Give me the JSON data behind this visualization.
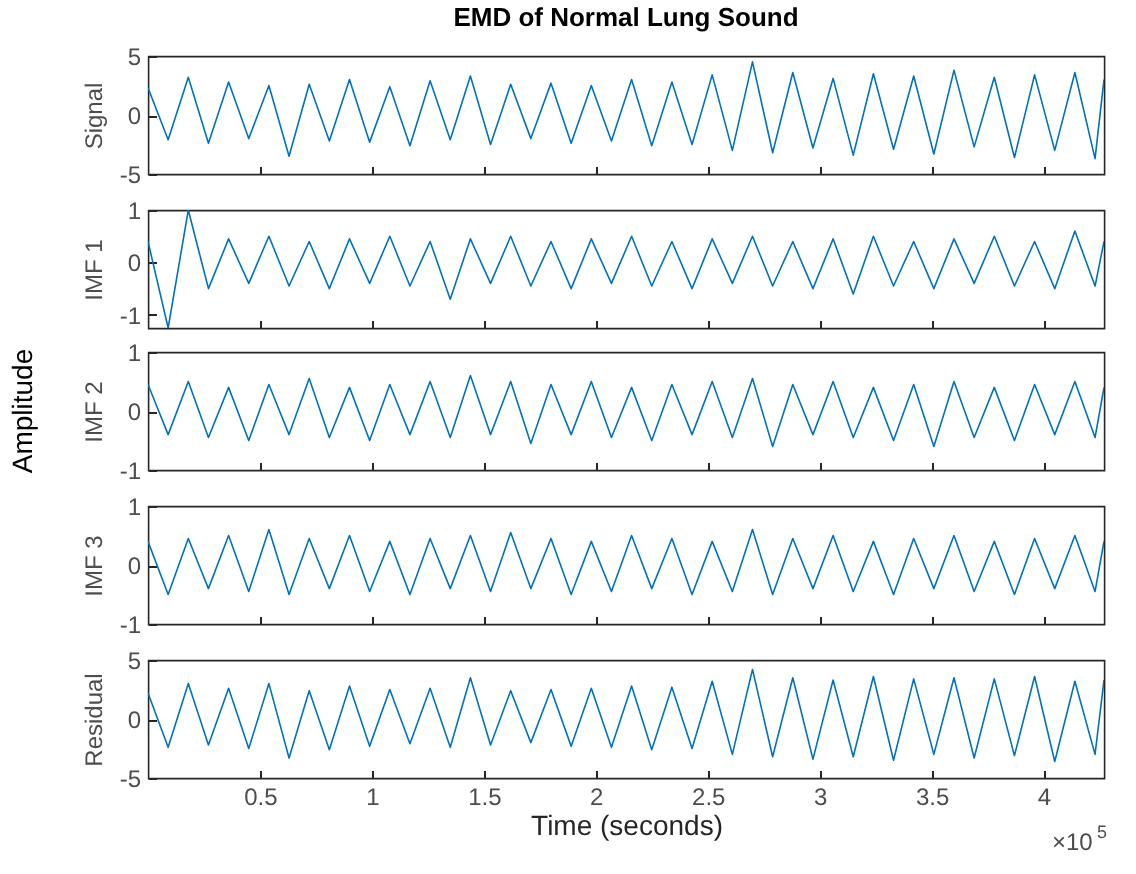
{
  "chart_data": [
    {
      "type": "line",
      "title": "EMD of Normal Lung Sound",
      "ylabel": "Signal",
      "x": [
        0,
        0.09,
        0.18,
        0.27,
        0.36,
        0.45,
        0.54,
        0.63,
        0.72,
        0.81,
        0.9,
        0.99,
        1.08,
        1.17,
        1.26,
        1.35,
        1.44,
        1.53,
        1.62,
        1.71,
        1.8,
        1.89,
        1.98,
        2.07,
        2.16,
        2.25,
        2.34,
        2.43,
        2.52,
        2.61,
        2.7,
        2.79,
        2.88,
        2.97,
        3.06,
        3.15,
        3.24,
        3.33,
        3.42,
        3.51,
        3.6,
        3.69,
        3.78,
        3.87,
        3.96,
        4.05,
        4.14,
        4.23,
        4.27
      ],
      "series": [
        {
          "color": "#0072bd",
          "values": [
            2.3,
            -2.1,
            3.2,
            -2.4,
            2.8,
            -2.0,
            2.5,
            -3.5,
            2.6,
            -2.2,
            3.0,
            -2.3,
            2.4,
            -2.6,
            2.9,
            -2.1,
            3.3,
            -2.5,
            2.6,
            -2.0,
            2.7,
            -2.4,
            2.5,
            -2.2,
            3.0,
            -2.6,
            2.8,
            -2.5,
            3.4,
            -3.0,
            4.5,
            -3.2,
            3.6,
            -2.8,
            3.1,
            -3.4,
            3.5,
            -2.9,
            3.3,
            -3.3,
            3.8,
            -2.7,
            3.2,
            -3.6,
            3.4,
            -3.0,
            3.6,
            -3.7,
            3.0
          ]
        }
      ],
      "xlim": [
        0,
        4.27
      ],
      "ylim": [
        -5,
        5
      ],
      "yticks": [
        -5,
        0,
        5
      ],
      "xticks": [
        0.5,
        1,
        1.5,
        2,
        2.5,
        3,
        3.5,
        4
      ],
      "tick_labels": "y",
      "grid": false
    },
    {
      "type": "line",
      "ylabel": "IMF 1",
      "x": [
        0,
        0.09,
        0.18,
        0.27,
        0.36,
        0.45,
        0.54,
        0.63,
        0.72,
        0.81,
        0.9,
        0.99,
        1.08,
        1.17,
        1.26,
        1.35,
        1.44,
        1.53,
        1.62,
        1.71,
        1.8,
        1.89,
        1.98,
        2.07,
        2.16,
        2.25,
        2.34,
        2.43,
        2.52,
        2.61,
        2.7,
        2.79,
        2.88,
        2.97,
        3.06,
        3.15,
        3.24,
        3.33,
        3.42,
        3.51,
        3.6,
        3.69,
        3.78,
        3.87,
        3.96,
        4.05,
        4.14,
        4.23,
        4.27
      ],
      "series": [
        {
          "color": "#0072bd",
          "values": [
            0.4,
            -1.25,
            1.0,
            -0.5,
            0.45,
            -0.4,
            0.5,
            -0.45,
            0.4,
            -0.5,
            0.45,
            -0.4,
            0.5,
            -0.45,
            0.4,
            -0.7,
            0.45,
            -0.4,
            0.5,
            -0.45,
            0.4,
            -0.5,
            0.45,
            -0.4,
            0.5,
            -0.45,
            0.4,
            -0.5,
            0.45,
            -0.4,
            0.5,
            -0.45,
            0.4,
            -0.5,
            0.45,
            -0.6,
            0.5,
            -0.45,
            0.4,
            -0.5,
            0.45,
            -0.4,
            0.5,
            -0.45,
            0.4,
            -0.5,
            0.6,
            -0.45,
            0.4
          ]
        }
      ],
      "xlim": [
        0,
        4.27
      ],
      "ylim": [
        -1.25,
        1
      ],
      "yticks": [
        -1,
        0,
        1
      ],
      "xticks": [
        0.5,
        1,
        1.5,
        2,
        2.5,
        3,
        3.5,
        4
      ],
      "tick_labels": "y",
      "grid": false
    },
    {
      "type": "line",
      "ylabel": "IMF 2",
      "annotations": [
        "Amplitude"
      ],
      "x": [
        0,
        0.09,
        0.18,
        0.27,
        0.36,
        0.45,
        0.54,
        0.63,
        0.72,
        0.81,
        0.9,
        0.99,
        1.08,
        1.17,
        1.26,
        1.35,
        1.44,
        1.53,
        1.62,
        1.71,
        1.8,
        1.89,
        1.98,
        2.07,
        2.16,
        2.25,
        2.34,
        2.43,
        2.52,
        2.61,
        2.7,
        2.79,
        2.88,
        2.97,
        3.06,
        3.15,
        3.24,
        3.33,
        3.42,
        3.51,
        3.6,
        3.69,
        3.78,
        3.87,
        3.96,
        4.05,
        4.14,
        4.23,
        4.27
      ],
      "series": [
        {
          "color": "#0072bd",
          "values": [
            0.45,
            -0.4,
            0.5,
            -0.45,
            0.4,
            -0.5,
            0.45,
            -0.4,
            0.55,
            -0.45,
            0.4,
            -0.5,
            0.45,
            -0.4,
            0.5,
            -0.45,
            0.6,
            -0.4,
            0.5,
            -0.55,
            0.45,
            -0.4,
            0.5,
            -0.45,
            0.4,
            -0.5,
            0.45,
            -0.4,
            0.5,
            -0.45,
            0.55,
            -0.6,
            0.45,
            -0.4,
            0.5,
            -0.45,
            0.4,
            -0.5,
            0.45,
            -0.6,
            0.5,
            -0.45,
            0.4,
            -0.5,
            0.45,
            -0.4,
            0.5,
            -0.45,
            0.4
          ]
        }
      ],
      "xlim": [
        0,
        4.27
      ],
      "ylim": [
        -1,
        1
      ],
      "yticks": [
        -1,
        0,
        1
      ],
      "xticks": [
        0.5,
        1,
        1.5,
        2,
        2.5,
        3,
        3.5,
        4
      ],
      "tick_labels": "y",
      "grid": false
    },
    {
      "type": "line",
      "ylabel": "IMF 3",
      "x": [
        0,
        0.09,
        0.18,
        0.27,
        0.36,
        0.45,
        0.54,
        0.63,
        0.72,
        0.81,
        0.9,
        0.99,
        1.08,
        1.17,
        1.26,
        1.35,
        1.44,
        1.53,
        1.62,
        1.71,
        1.8,
        1.89,
        1.98,
        2.07,
        2.16,
        2.25,
        2.34,
        2.43,
        2.52,
        2.61,
        2.7,
        2.79,
        2.88,
        2.97,
        3.06,
        3.15,
        3.24,
        3.33,
        3.42,
        3.51,
        3.6,
        3.69,
        3.78,
        3.87,
        3.96,
        4.05,
        4.14,
        4.23,
        4.27
      ],
      "series": [
        {
          "color": "#0072bd",
          "values": [
            0.4,
            -0.5,
            0.45,
            -0.4,
            0.5,
            -0.45,
            0.6,
            -0.5,
            0.45,
            -0.4,
            0.5,
            -0.45,
            0.4,
            -0.5,
            0.45,
            -0.4,
            0.5,
            -0.45,
            0.55,
            -0.4,
            0.45,
            -0.5,
            0.4,
            -0.45,
            0.5,
            -0.4,
            0.45,
            -0.5,
            0.4,
            -0.45,
            0.6,
            -0.5,
            0.45,
            -0.4,
            0.5,
            -0.45,
            0.4,
            -0.5,
            0.45,
            -0.4,
            0.5,
            -0.45,
            0.4,
            -0.5,
            0.45,
            -0.4,
            0.5,
            -0.45,
            0.4
          ]
        }
      ],
      "xlim": [
        0,
        4.27
      ],
      "ylim": [
        -1,
        1
      ],
      "yticks": [
        -1,
        0,
        1
      ],
      "xticks": [
        0.5,
        1,
        1.5,
        2,
        2.5,
        3,
        3.5,
        4
      ],
      "tick_labels": "y",
      "grid": false
    },
    {
      "type": "line",
      "ylabel": "Residual",
      "xlabel": "Time (seconds)",
      "annotations": [
        "×10$^{5}$"
      ],
      "x": [
        0,
        0.09,
        0.18,
        0.27,
        0.36,
        0.45,
        0.54,
        0.63,
        0.72,
        0.81,
        0.9,
        0.99,
        1.08,
        1.17,
        1.26,
        1.35,
        1.44,
        1.53,
        1.62,
        1.71,
        1.8,
        1.89,
        1.98,
        2.07,
        2.16,
        2.25,
        2.34,
        2.43,
        2.52,
        2.61,
        2.7,
        2.79,
        2.88,
        2.97,
        3.06,
        3.15,
        3.24,
        3.33,
        3.42,
        3.51,
        3.6,
        3.69,
        3.78,
        3.87,
        3.96,
        4.05,
        4.14,
        4.23,
        4.27
      ],
      "series": [
        {
          "color": "#0072bd",
          "values": [
            2.2,
            -2.4,
            3.0,
            -2.2,
            2.6,
            -2.5,
            3.0,
            -3.3,
            2.4,
            -2.6,
            2.8,
            -2.3,
            2.5,
            -2.1,
            2.6,
            -2.4,
            3.5,
            -2.2,
            2.4,
            -2.0,
            2.5,
            -2.3,
            2.6,
            -2.4,
            2.8,
            -2.6,
            2.7,
            -2.5,
            3.2,
            -3.0,
            4.2,
            -3.2,
            3.5,
            -3.4,
            3.3,
            -3.2,
            3.6,
            -3.5,
            3.4,
            -3.0,
            3.5,
            -3.3,
            3.4,
            -3.1,
            3.6,
            -3.6,
            3.2,
            -3.0,
            3.3
          ]
        }
      ],
      "xlim": [
        0,
        4.27
      ],
      "ylim": [
        -5,
        5
      ],
      "yticks": [
        -5,
        0,
        5
      ],
      "xticks": [
        0.5,
        1,
        1.5,
        2,
        2.5,
        3,
        3.5,
        4
      ],
      "grid": false
    }
  ]
}
